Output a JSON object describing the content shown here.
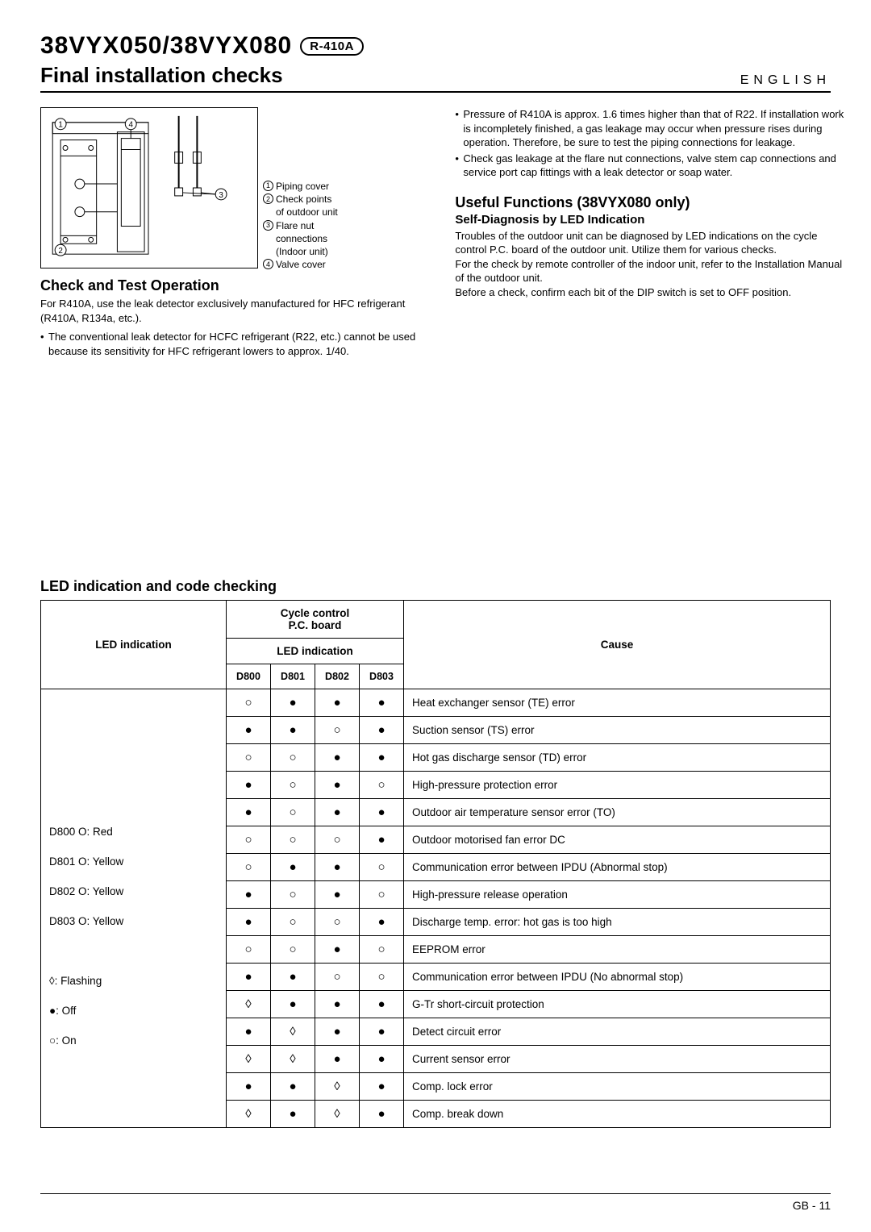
{
  "header": {
    "model": "38VYX050/38VYX080",
    "badge": "R-410A",
    "subtitle": "Final installation checks",
    "language": "ENGLISH"
  },
  "diagram_legend": [
    {
      "num": "1",
      "text": "Piping cover"
    },
    {
      "num": "2",
      "text": "Check points",
      "sub": "of outdoor unit"
    },
    {
      "num": "3",
      "text": "Flare nut",
      "sub": "connections",
      "sub2": "(Indoor unit)"
    },
    {
      "num": "4",
      "text": "Valve cover"
    }
  ],
  "left_section": {
    "heading": "Check and Test Operation",
    "intro": "For R410A, use the leak detector exclusively manufactured for HFC refrigerant (R410A, R134a, etc.).",
    "bullets": [
      "The conventional leak detector for HCFC refrigerant (R22, etc.) cannot be used because its sensitivity for HFC refrigerant lowers to approx. 1/40."
    ]
  },
  "right_section": {
    "bullets_top": [
      "Pressure of R410A is approx. 1.6 times higher than that of R22. If installation work is incompletely finished, a gas leakage may occur when pressure rises during operation.\nTherefore, be sure to test the piping connections for leakage.",
      "Check gas leakage at the flare nut connections, valve stem cap connections and service port cap fittings with a leak detector or soap water."
    ],
    "heading": "Useful Functions (38VYX080 only)",
    "sub_heading": "Self-Diagnosis by LED Indication",
    "body": "Troubles of the outdoor unit can be diagnosed by LED indications on the cycle control P.C. board of the outdoor unit. Utilize them for various checks.\nFor the check by remote controller of the indoor unit, refer to the Installation Manual of the outdoor unit.\nBefore a check, confirm each bit of the DIP switch is set to OFF position."
  },
  "table": {
    "title": "LED indication and code checking",
    "headers": {
      "led_indication": "LED indication",
      "cycle_control": "Cycle control\nP.C. board",
      "led_indication_sub": "LED indication",
      "cause": "Cause",
      "cols": [
        "D800",
        "D801",
        "D802",
        "D803"
      ]
    },
    "row_labels": [
      "D800 O: Red",
      "D801 O: Yellow",
      "D802 O: Yellow",
      "D803 O: Yellow",
      "",
      "◊: Flashing",
      "●: Off",
      "○: On"
    ],
    "rows": [
      {
        "d": [
          "on",
          "off",
          "off",
          "off"
        ],
        "cause": "Heat exchanger sensor (TE) error"
      },
      {
        "d": [
          "off",
          "off",
          "on",
          "off"
        ],
        "cause": "Suction sensor (TS) error"
      },
      {
        "d": [
          "on",
          "on",
          "off",
          "off"
        ],
        "cause": "Hot gas discharge sensor (TD) error"
      },
      {
        "d": [
          "off",
          "on",
          "off",
          "on"
        ],
        "cause": "High-pressure protection error"
      },
      {
        "d": [
          "off",
          "on",
          "off",
          "off"
        ],
        "cause": "Outdoor air temperature sensor error (TO)"
      },
      {
        "d": [
          "on",
          "on",
          "on",
          "off"
        ],
        "cause": "Outdoor motorised fan error DC"
      },
      {
        "d": [
          "on",
          "off",
          "off",
          "on"
        ],
        "cause": "Communication error between IPDU (Abnormal stop)"
      },
      {
        "d": [
          "off",
          "on",
          "off",
          "on"
        ],
        "cause": "High-pressure release operation"
      },
      {
        "d": [
          "off",
          "on",
          "on",
          "off"
        ],
        "cause": "Discharge temp. error: hot gas is too high"
      },
      {
        "d": [
          "on",
          "on",
          "off",
          "on"
        ],
        "cause": "EEPROM error"
      },
      {
        "d": [
          "off",
          "off",
          "on",
          "on"
        ],
        "cause": "Communication error between IPDU (No abnormal stop)"
      },
      {
        "d": [
          "flash",
          "off",
          "off",
          "off"
        ],
        "cause": "G-Tr short-circuit protection"
      },
      {
        "d": [
          "off",
          "flash",
          "off",
          "off"
        ],
        "cause": "Detect circuit error"
      },
      {
        "d": [
          "flash",
          "flash",
          "off",
          "off"
        ],
        "cause": "Current sensor error"
      },
      {
        "d": [
          "off",
          "off",
          "flash",
          "off"
        ],
        "cause": "Comp. lock error"
      },
      {
        "d": [
          "flash",
          "off",
          "flash",
          "off"
        ],
        "cause": "Comp. break down"
      }
    ]
  },
  "footer": "GB - 11"
}
